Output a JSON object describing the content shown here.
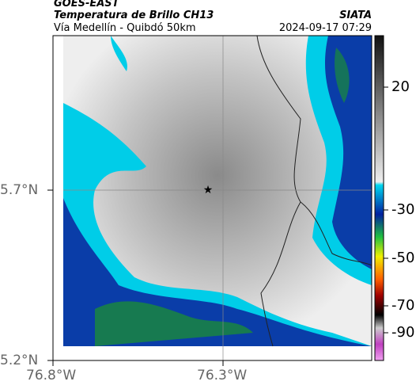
{
  "header": {
    "satellite": "GOES-EAST",
    "product": "Temperatura de Brillo CH13",
    "region": "Vía Medellín - Quibdó 50km",
    "source": "SIATA",
    "datetime": "2024-09-17 07:29"
  },
  "map": {
    "lat_ticks": [
      "5.7°N",
      "5.2°N"
    ],
    "lon_ticks": [
      "76.8°W",
      "76.3°W"
    ]
  },
  "colorbar": {
    "ticks": [
      20,
      -30,
      -50,
      -70,
      -90
    ]
  }
}
